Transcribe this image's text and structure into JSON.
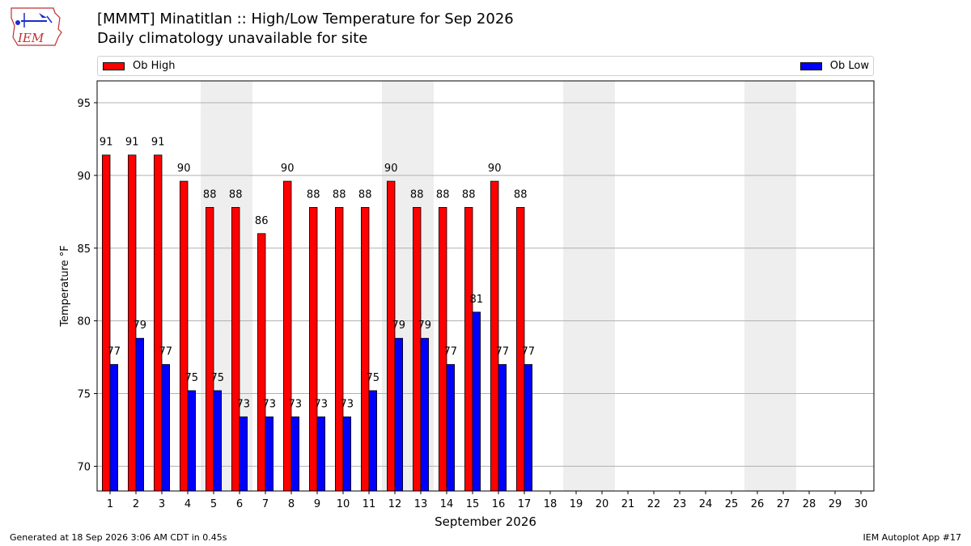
{
  "header": {
    "title": "[MMMT] Minatitlan :: High/Low Temperature for Sep 2026",
    "subtitle": "Daily climatology unavailable for site",
    "logo_text": "IEM"
  },
  "footer": {
    "generated": "Generated at 18 Sep 2026 3:06 AM CDT in 0.45s",
    "app": "IEM Autoplot App #17"
  },
  "colors": {
    "high": "#ff0000",
    "low": "#0000ff",
    "weekend_shade": "#eeeeee",
    "grid": "#b0b0b0"
  },
  "chart_data": {
    "type": "bar",
    "xlabel": "September 2026",
    "ylabel": "Temperature °F",
    "ylim": [
      68.3,
      96.5
    ],
    "yticks": [
      70,
      75,
      80,
      85,
      90,
      95
    ],
    "grid": true,
    "legend_placement": "top",
    "days": [
      1,
      2,
      3,
      4,
      5,
      6,
      7,
      8,
      9,
      10,
      11,
      12,
      13,
      14,
      15,
      16,
      17,
      18,
      19,
      20,
      21,
      22,
      23,
      24,
      25,
      26,
      27,
      28,
      29,
      30
    ],
    "weekend_bands": [
      [
        5,
        6
      ],
      [
        12,
        13
      ],
      [
        19,
        20
      ],
      [
        26,
        27
      ]
    ],
    "series": [
      {
        "name": "Ob High",
        "values": [
          91.4,
          91.4,
          91.4,
          89.6,
          87.8,
          87.8,
          86.0,
          89.6,
          87.8,
          87.8,
          87.8,
          89.6,
          87.8,
          87.8,
          87.8,
          89.6,
          87.8
        ],
        "labels": [
          "91",
          "91",
          "91",
          "90",
          "88",
          "88",
          "86",
          "90",
          "88",
          "88",
          "88",
          "90",
          "88",
          "88",
          "88",
          "90",
          "88"
        ]
      },
      {
        "name": "Ob Low",
        "values": [
          77.0,
          78.8,
          77.0,
          75.2,
          75.2,
          73.4,
          73.4,
          73.4,
          73.4,
          73.4,
          75.2,
          78.8,
          78.8,
          77.0,
          80.6,
          77.0,
          77.0
        ],
        "labels": [
          "77",
          "79",
          "77",
          "75",
          "75",
          "73",
          "73",
          "73",
          "73",
          "73",
          "75",
          "79",
          "79",
          "77",
          "81",
          "77",
          "77"
        ]
      }
    ]
  }
}
